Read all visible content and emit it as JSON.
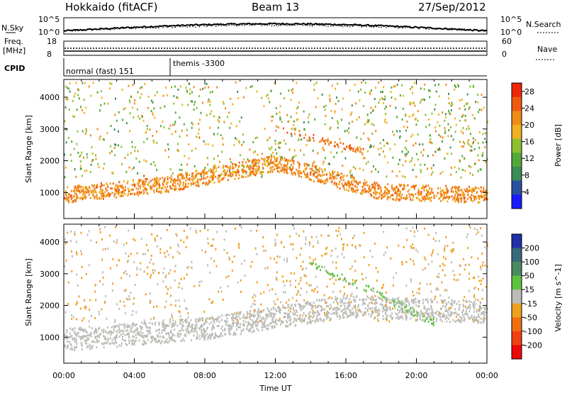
{
  "header": {
    "radar": "Hokkaido (fitACF)",
    "beam": "Beam 13",
    "date": "27/Sep/2012"
  },
  "status_panel": {
    "nsky_label": "N.Sky",
    "nsky_ticks": [
      "10^5",
      "10^0"
    ],
    "nsearch_label": "N.Search",
    "nsearch_ticks": [
      "10^5",
      "10^0"
    ],
    "freq_label": "Freq.",
    "freq_unit": "[MHz]",
    "freq_ticks": [
      "18",
      "8"
    ],
    "nave_label": "Nave",
    "nave_ticks": [
      "60",
      "0"
    ],
    "cpid_label": "CPID",
    "cpid_segments": [
      {
        "name": "normal (fast) 151",
        "start_hour": 0,
        "end_hour": 6
      },
      {
        "name": "themis -3300",
        "start_hour": 6,
        "end_hour": 24
      }
    ]
  },
  "chart_data": [
    {
      "type": "heatmap",
      "title": "",
      "xlabel": "Time UT",
      "ylabel": "Slant Range [km]",
      "xlim": [
        0,
        24
      ],
      "ylim": [
        180,
        4560
      ],
      "x_ticks": [
        "00:00",
        "04:00",
        "08:00",
        "12:00",
        "16:00",
        "20:00",
        "00:00"
      ],
      "y_ticks": [
        1000,
        2000,
        3000,
        4000
      ],
      "colorbar": {
        "label": "Power [dB]",
        "ticks": [
          4,
          8,
          12,
          16,
          20,
          24,
          28
        ],
        "range": [
          0,
          30
        ],
        "colors": [
          "#1a1aff",
          "#2a50a0",
          "#3c8c58",
          "#52a83a",
          "#8cc030",
          "#f0b020",
          "#f08a18",
          "#f05a10",
          "#f02808"
        ]
      },
      "features": [
        {
          "label": "lower band",
          "time_range": [
            0,
            24
          ],
          "center_km": [
            950,
            1300,
            1950,
            1050,
            950
          ],
          "level_db": 26
        },
        {
          "label": "upper arc",
          "time_range": [
            12,
            17
          ],
          "center_km": [
            3100,
            2300
          ],
          "level_db": 28
        }
      ]
    },
    {
      "type": "heatmap",
      "title": "",
      "xlabel": "Time UT",
      "ylabel": "Slant Range [km]",
      "xlim": [
        0,
        24
      ],
      "ylim": [
        180,
        4560
      ],
      "x_ticks": [
        "00:00",
        "04:00",
        "08:00",
        "12:00",
        "16:00",
        "20:00",
        "00:00"
      ],
      "y_ticks": [
        1000,
        2000,
        3000,
        4000
      ],
      "colorbar": {
        "label": "Velocity [m s^-1]",
        "ticks": [
          200,
          100,
          50,
          15,
          -15,
          -50,
          -100,
          -200
        ],
        "range": [
          -250,
          250
        ],
        "colors": [
          "#2030a8",
          "#3a6a7a",
          "#4a8a60",
          "#60c040",
          "#bcbcb8",
          "#f0a020",
          "#f07010",
          "#f04010",
          "#f00808"
        ]
      },
      "features": [
        {
          "label": "ground scatter",
          "time_range": [
            0,
            24
          ],
          "center_km": [
            950,
            1300,
            2000,
            1800
          ],
          "velocity_ms": 0
        },
        {
          "label": "receding arc",
          "time_range": [
            14,
            21
          ],
          "center_km": [
            3400,
            1500
          ],
          "velocity_ms": 60
        }
      ]
    }
  ]
}
